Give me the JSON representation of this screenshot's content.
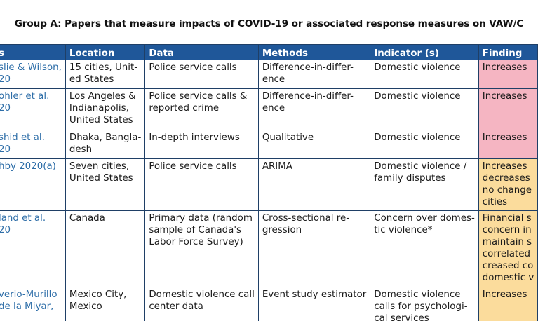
{
  "title": "Group A: Papers that measure impacts of COVID-19 or associated response measures on VAW/C",
  "colors": {
    "header_bg": "#1f5799",
    "border": "#1f3f66",
    "reference_text": "#2e6ea8",
    "finding_increase": "#f5b5c2",
    "finding_mixed": "#fbdc9c"
  },
  "table": {
    "headers": [
      "s",
      "Location",
      "Data",
      "Methods",
      "Indicator (s)",
      "Finding"
    ],
    "rows": [
      {
        "ref": [
          "slie & Wilson,",
          "20"
        ],
        "location": [
          "15 cities, Unit-",
          "ed States"
        ],
        "data": [
          "Police service calls"
        ],
        "methods": [
          "Difference-in-differ-",
          "ence"
        ],
        "indicator": [
          "Domestic violence"
        ],
        "finding": [
          "Increases"
        ],
        "finding_color": "red"
      },
      {
        "ref": [
          "ohler et al.",
          "20"
        ],
        "location": [
          "Los Angeles &",
          "Indianapolis,",
          "United States"
        ],
        "data": [
          "Police service calls &",
          "reported crime"
        ],
        "methods": [
          "Difference-in-differ-",
          "ence"
        ],
        "indicator": [
          "Domestic violence"
        ],
        "finding": [
          "Increases"
        ],
        "finding_color": "red"
      },
      {
        "ref": [
          "shid et al.",
          "20"
        ],
        "location": [
          "Dhaka, Bangla-",
          "desh"
        ],
        "data": [
          "In-depth interviews"
        ],
        "methods": [
          "Qualitative"
        ],
        "indicator": [
          "Domestic violence"
        ],
        "finding": [
          "Increases"
        ],
        "finding_color": "red"
      },
      {
        "ref": [
          "hby 2020(a)"
        ],
        "location": [
          "Seven cities,",
          "United States"
        ],
        "data": [
          "Police service calls"
        ],
        "methods": [
          "ARIMA"
        ],
        "indicator": [
          "Domestic violence /",
          "family disputes"
        ],
        "finding": [
          "Increases",
          "decreases",
          "no change",
          "cities"
        ],
        "finding_color": "yellow"
      },
      {
        "ref": [
          "land et al.",
          "20"
        ],
        "location": [
          "Canada"
        ],
        "data": [
          "Primary data (random",
          "sample of Canada's",
          "Labor Force Survey)"
        ],
        "methods": [
          "Cross-sectional re-",
          "gression"
        ],
        "indicator": [
          "Concern over domes-",
          "tic violence*"
        ],
        "finding": [
          "Financial s",
          "concern in",
          "maintain s",
          "correlated",
          "creased co",
          "domestic v"
        ],
        "finding_color": "yellow"
      },
      {
        "ref": [
          "verio-Murillo",
          "de la Miyar,"
        ],
        "location": [
          "Mexico City,",
          "Mexico"
        ],
        "data": [
          "Domestic violence call",
          "center data"
        ],
        "methods": [
          "Event study estimator"
        ],
        "indicator": [
          "Domestic violence",
          "calls for psychologi-",
          "cal services"
        ],
        "finding": [
          "Increases"
        ],
        "finding_color": "yellow"
      }
    ]
  }
}
